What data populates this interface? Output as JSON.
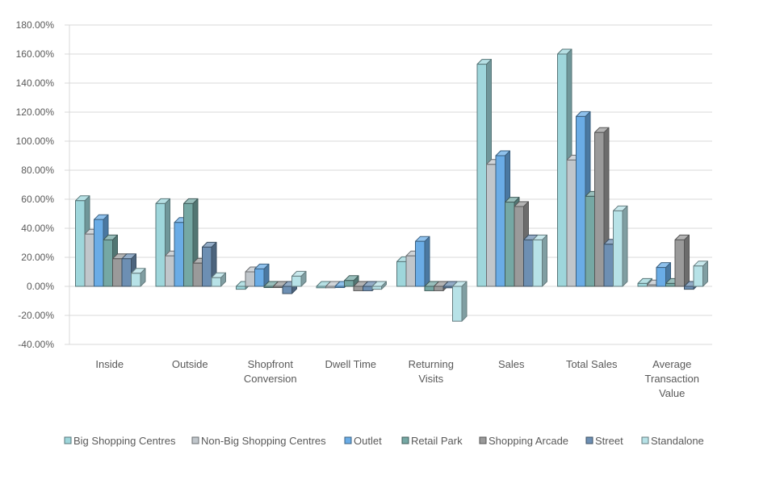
{
  "chart_data": {
    "type": "bar",
    "title": "",
    "xlabel": "",
    "ylabel": "",
    "ylim": [
      -40,
      180
    ],
    "yticks": [
      -40,
      -20,
      0,
      20,
      40,
      60,
      80,
      100,
      120,
      140,
      160,
      180
    ],
    "ytick_format": "percent_2dp",
    "grid": true,
    "legend_position": "bottom",
    "style": "3d-clustered-column",
    "categories": [
      [
        "Inside"
      ],
      [
        "Outside"
      ],
      [
        "Shopfront",
        "Conversion"
      ],
      [
        "Dwell Time"
      ],
      [
        "Returning",
        "Visits"
      ],
      [
        "Sales"
      ],
      [
        "Total Sales"
      ],
      [
        "Average",
        "Transaction",
        "Value"
      ]
    ],
    "series": [
      {
        "name": "Big Shopping Centres",
        "color": "#9ed6db",
        "values": [
          59,
          57,
          -2,
          -1,
          17,
          153,
          160,
          2
        ]
      },
      {
        "name": "Non-Big Shopping Centres",
        "color": "#c0c6cb",
        "values": [
          36,
          21,
          10,
          -1,
          21,
          84,
          87,
          1
        ]
      },
      {
        "name": "Outlet",
        "color": "#6aace6",
        "values": [
          46,
          44,
          12,
          0,
          31,
          90,
          117,
          13
        ]
      },
      {
        "name": "Retail Park",
        "color": "#75a8a4",
        "values": [
          32,
          57,
          0,
          4,
          -3,
          58,
          62,
          2
        ]
      },
      {
        "name": "Shopping Arcade",
        "color": "#9a9a9a",
        "values": [
          19,
          16,
          0,
          -3,
          -3,
          55,
          106,
          32
        ]
      },
      {
        "name": "Street",
        "color": "#6d8fb3",
        "values": [
          19,
          27,
          -5,
          -3,
          -1,
          32,
          29,
          -2
        ]
      },
      {
        "name": "Standalone",
        "color": "#b7e2e7",
        "values": [
          9,
          6,
          7,
          -2,
          -24,
          32,
          52,
          14
        ]
      }
    ]
  }
}
